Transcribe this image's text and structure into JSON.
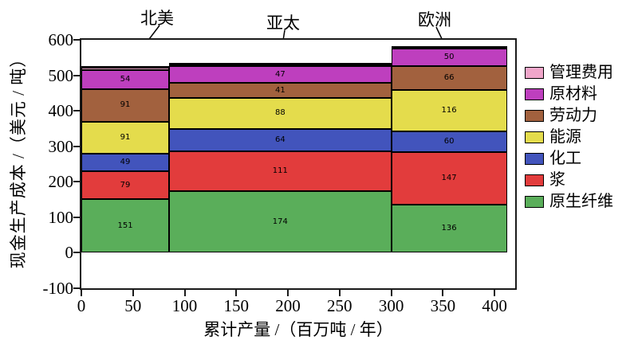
{
  "regions": [
    {
      "key": "north-america",
      "label": "北美"
    },
    {
      "key": "asia-pacific",
      "label": "亚太"
    },
    {
      "key": "europe",
      "label": "欧洲"
    }
  ],
  "y_axis": {
    "title": "现金生产成本 /（美元 / 吨）",
    "min": -100,
    "max": 600,
    "ticks": [
      600,
      500,
      400,
      300,
      200,
      100,
      0,
      -100
    ]
  },
  "x_axis": {
    "title": "累计产量 /（百万吨 / 年）",
    "min": 0,
    "max": 420,
    "ticks": [
      0,
      50,
      100,
      150,
      200,
      250,
      300,
      350,
      400
    ]
  },
  "legend": {
    "position": "right",
    "items": [
      {
        "key": "admin",
        "label": "管理费用",
        "color": "#F0A6CA"
      },
      {
        "key": "raw-materials",
        "label": "原材料",
        "color": "#BE3FBE"
      },
      {
        "key": "labor",
        "label": "劳动力",
        "color": "#A2613E"
      },
      {
        "key": "energy",
        "label": "能源",
        "color": "#E4DC4C"
      },
      {
        "key": "chemicals",
        "label": "化工",
        "color": "#4254BC"
      },
      {
        "key": "pulp",
        "label": "浆",
        "color": "#E23C3C"
      },
      {
        "key": "virgin-fiber",
        "label": "原生纤维",
        "color": "#5AAE5A"
      }
    ]
  },
  "chart_data": {
    "type": "bar",
    "variant": "variable-width-stacked-cost-curve",
    "title": "",
    "xlabel": "累计产量 /（百万吨 / 年）",
    "ylabel": "现金生产成本 /（美元 / 吨）",
    "xlim": [
      0,
      420
    ],
    "ylim": [
      -100,
      600
    ],
    "grid": false,
    "legend_position": "right",
    "series_keys_bottom_to_top": [
      "virgin-fiber",
      "pulp",
      "chemicals",
      "energy",
      "labor",
      "raw-materials",
      "admin"
    ],
    "series_labels_bottom_to_top": [
      "原生纤维",
      "浆",
      "化工",
      "能源",
      "劳动力",
      "原材料",
      "管理费用"
    ],
    "series_colors_bottom_to_top": [
      "#5AAE5A",
      "#E23C3C",
      "#4254BC",
      "#E4DC4C",
      "#A2613E",
      "#BE3FBE",
      "#F0A6CA"
    ],
    "bars": [
      {
        "key": "north-america",
        "label": "北美",
        "x_start": 0,
        "x_end": 85,
        "values": [
          151,
          79,
          49,
          91,
          91,
          54,
          10
        ],
        "value_labels": [
          "151",
          "79",
          "49",
          "91",
          "91",
          "54",
          ""
        ]
      },
      {
        "key": "asia-pacific",
        "label": "亚太",
        "x_start": 85,
        "x_end": 300,
        "values": [
          174,
          111,
          64,
          88,
          41,
          47,
          10
        ],
        "value_labels": [
          "174",
          "111",
          "64",
          "88",
          "41",
          "47",
          ""
        ]
      },
      {
        "key": "europe",
        "label": "欧洲",
        "x_start": 300,
        "x_end": 412,
        "values": [
          136,
          147,
          60,
          116,
          66,
          50,
          8
        ],
        "value_labels": [
          "136",
          "147",
          "60",
          "116",
          "66",
          "50",
          ""
        ]
      }
    ]
  }
}
